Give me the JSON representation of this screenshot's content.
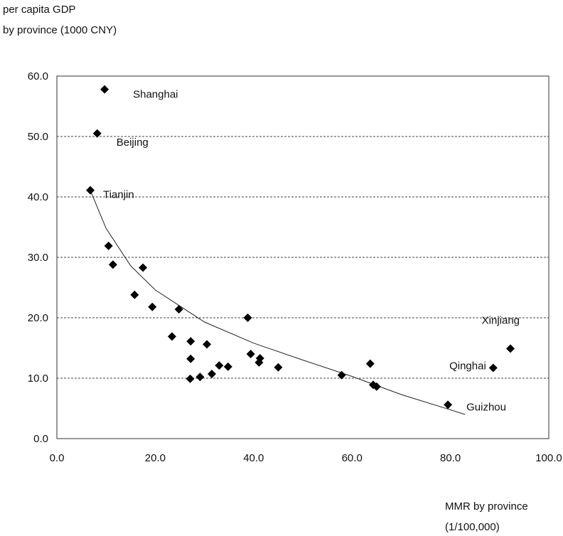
{
  "chart_data": {
    "type": "scatter",
    "ylabel_lines": [
      "per capita GDP",
      "by province (1000 CNY)"
    ],
    "xlabel_lines": [
      "MMR by province",
      "(1/100,000)"
    ],
    "xlim": [
      0,
      100
    ],
    "ylim": [
      0,
      60
    ],
    "xticks": [
      0,
      20,
      40,
      60,
      80,
      100
    ],
    "yticks": [
      0,
      10,
      20,
      30,
      40,
      50,
      60
    ],
    "xtick_labels": [
      "0.0",
      "20.0",
      "40.0",
      "60.0",
      "80.0",
      "100.0"
    ],
    "ytick_labels": [
      "0.0",
      "10.0",
      "20.0",
      "30.0",
      "40.0",
      "50.0",
      "60.0"
    ],
    "grid": "horizontal dashed",
    "marker_color": "#000000",
    "points": [
      {
        "x": 9.7,
        "y": 57.8,
        "label": "Shanghai"
      },
      {
        "x": 8.2,
        "y": 50.5,
        "label": "Beijing"
      },
      {
        "x": 6.8,
        "y": 41.1,
        "label": "Tianjin"
      },
      {
        "x": 10.5,
        "y": 31.9
      },
      {
        "x": 11.4,
        "y": 28.8
      },
      {
        "x": 17.5,
        "y": 28.3
      },
      {
        "x": 15.8,
        "y": 23.8
      },
      {
        "x": 19.4,
        "y": 21.8
      },
      {
        "x": 24.8,
        "y": 21.4
      },
      {
        "x": 38.8,
        "y": 20.0
      },
      {
        "x": 23.4,
        "y": 16.9
      },
      {
        "x": 27.2,
        "y": 16.1
      },
      {
        "x": 30.5,
        "y": 15.6
      },
      {
        "x": 27.2,
        "y": 13.2
      },
      {
        "x": 39.4,
        "y": 14.0
      },
      {
        "x": 41.3,
        "y": 13.3
      },
      {
        "x": 41.1,
        "y": 12.6
      },
      {
        "x": 33.0,
        "y": 12.1
      },
      {
        "x": 34.8,
        "y": 11.9
      },
      {
        "x": 45.0,
        "y": 11.8
      },
      {
        "x": 31.5,
        "y": 10.7
      },
      {
        "x": 29.1,
        "y": 10.2
      },
      {
        "x": 27.1,
        "y": 9.9
      },
      {
        "x": 57.9,
        "y": 10.5
      },
      {
        "x": 63.7,
        "y": 12.4
      },
      {
        "x": 64.3,
        "y": 8.9
      },
      {
        "x": 65.0,
        "y": 8.6
      },
      {
        "x": 79.5,
        "y": 5.6,
        "label": "Guizhou"
      },
      {
        "x": 88.7,
        "y": 11.7,
        "label": "Qinghai"
      },
      {
        "x": 92.2,
        "y": 14.9,
        "label": "Xinjiang"
      }
    ],
    "trendline": {
      "type": "power",
      "x": [
        7,
        10,
        15,
        20,
        30,
        40,
        50,
        60,
        70,
        83
      ],
      "y": [
        40.7,
        34.8,
        28.6,
        24.6,
        19.3,
        15.8,
        13.0,
        10.3,
        7.3,
        4.0
      ]
    }
  }
}
